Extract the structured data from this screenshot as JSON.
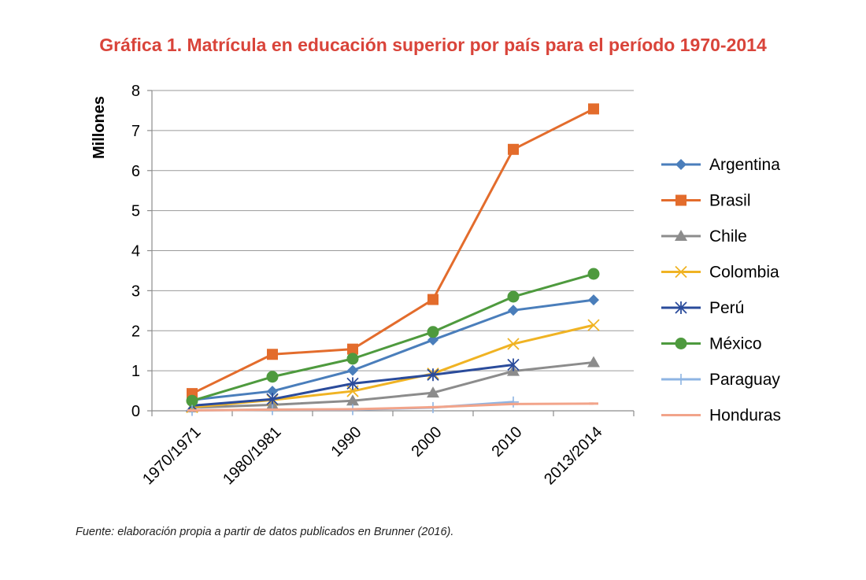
{
  "title": "Gráfica 1. Matrícula en educación superior por país para el período 1970-2014",
  "source": "Fuente: elaboración propia a partir de datos publicados en Brunner (2016).",
  "colors": {
    "title": "#D9443A",
    "axis": "#8c8c8c",
    "grid": "#9a9a9a"
  },
  "chart_data": {
    "type": "line",
    "title": "Gráfica 1. Matrícula en educación superior por país para el período 1970-2014",
    "xlabel": "",
    "ylabel": "Millones",
    "ylim": [
      0,
      8
    ],
    "yticks": [
      "0",
      "1",
      "2",
      "3",
      "4",
      "5",
      "6",
      "7",
      "8"
    ],
    "categories": [
      "1970/1971",
      "1980/1981",
      "1990",
      "2000",
      "2010",
      "2013/2014"
    ],
    "grid": true,
    "legend_position": "right",
    "series": [
      {
        "name": "Argentina",
        "color": "#4A7EBB",
        "marker": "diamond",
        "values": [
          0.27,
          0.49,
          1.01,
          1.77,
          2.51,
          2.77
        ]
      },
      {
        "name": "Brasil",
        "color": "#E36C2C",
        "marker": "square",
        "values": [
          0.43,
          1.41,
          1.54,
          2.78,
          6.53,
          7.54
        ]
      },
      {
        "name": "Chile",
        "color": "#8C8C8C",
        "marker": "triangle",
        "values": [
          0.08,
          0.15,
          0.25,
          0.45,
          0.99,
          1.21
        ]
      },
      {
        "name": "Colombia",
        "color": "#F0B323",
        "marker": "x",
        "values": [
          0.09,
          0.27,
          0.49,
          0.93,
          1.67,
          2.14
        ]
      },
      {
        "name": "Perú",
        "color": "#2A4B9B",
        "marker": "asterisk",
        "values": [
          0.13,
          0.29,
          0.68,
          0.9,
          1.15,
          null
        ]
      },
      {
        "name": "México",
        "color": "#4E9A3E",
        "marker": "circle",
        "values": [
          0.25,
          0.85,
          1.3,
          1.97,
          2.85,
          3.42
        ]
      },
      {
        "name": "Paraguay",
        "color": "#8EB4E3",
        "marker": "plus",
        "values": [
          0.01,
          0.03,
          0.03,
          0.08,
          0.22,
          null
        ]
      },
      {
        "name": "Honduras",
        "color": "#F2A48A",
        "marker": "dash",
        "values": [
          0.01,
          0.03,
          0.04,
          0.09,
          0.17,
          0.18
        ]
      }
    ]
  }
}
